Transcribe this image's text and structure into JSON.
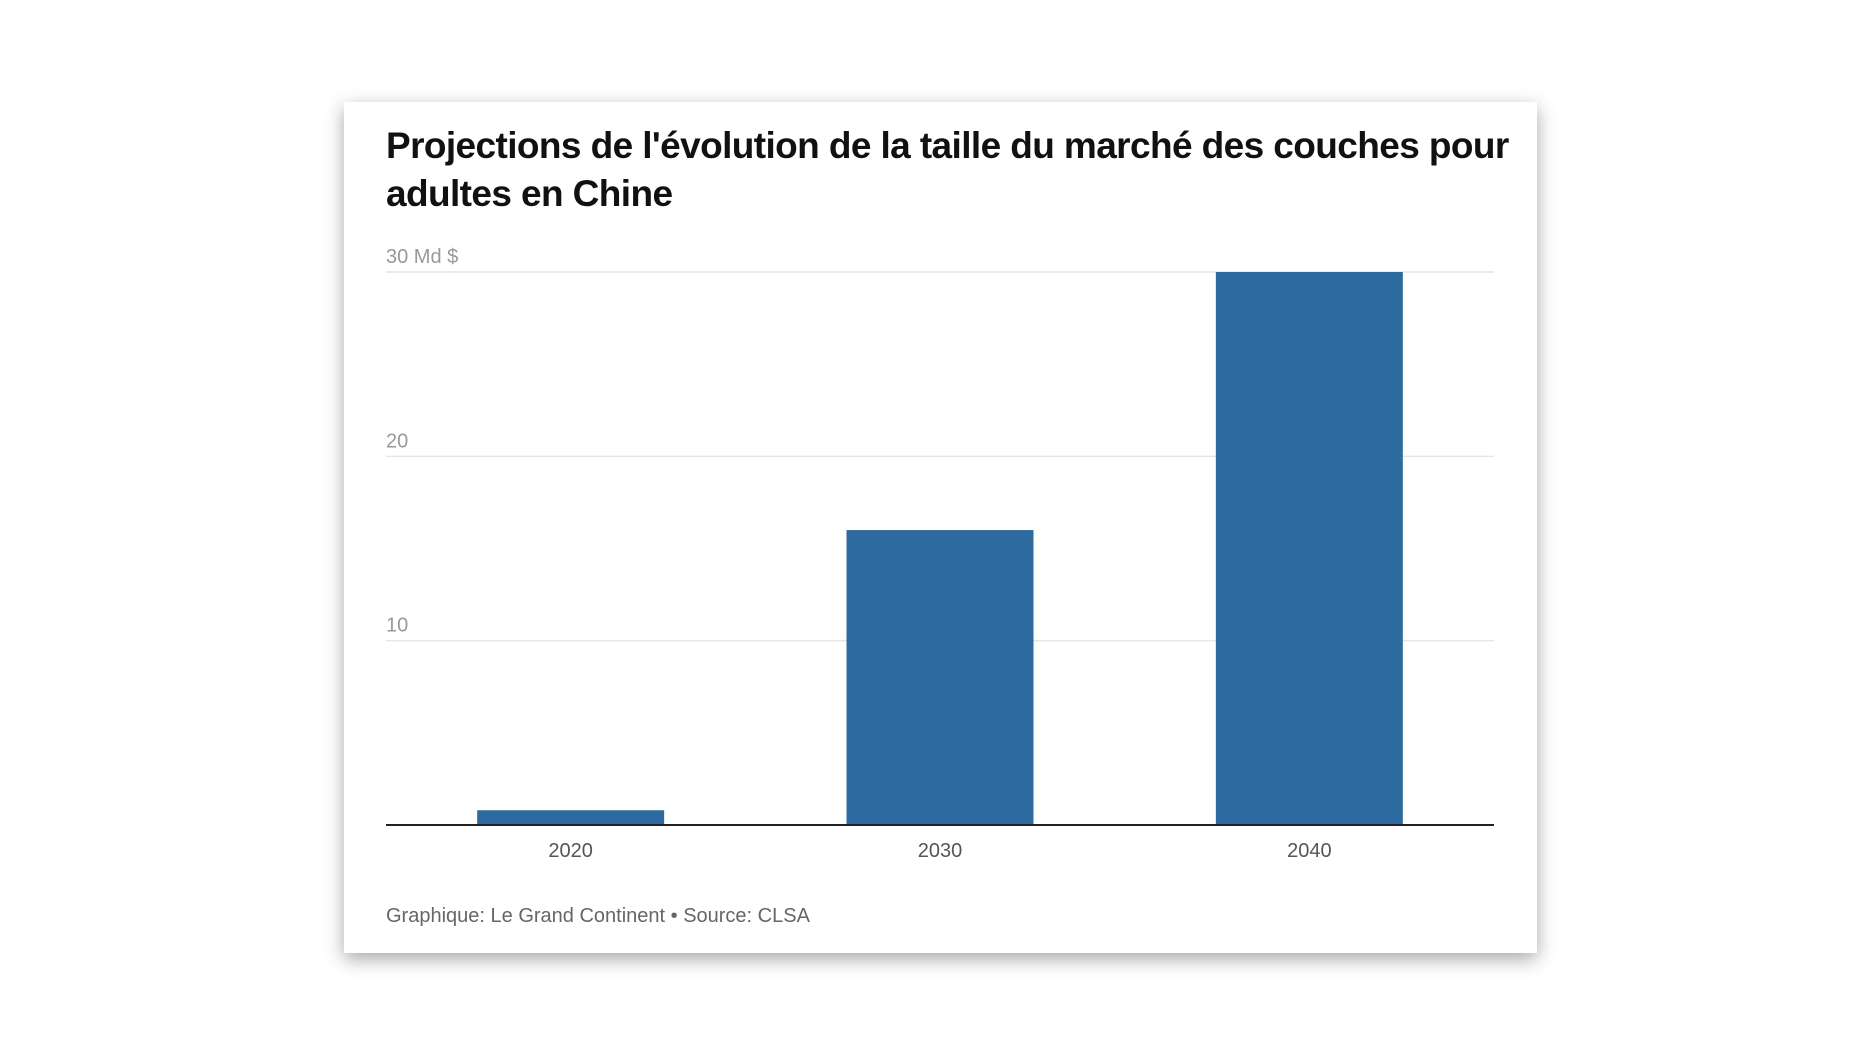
{
  "chart_data": {
    "type": "bar",
    "title": "Projections de l'évolution de la taille du marché des couches pour adultes en Chine",
    "categories": [
      "2020",
      "2030",
      "2040"
    ],
    "values": [
      0.8,
      16,
      30
    ],
    "ylim": [
      0,
      30
    ],
    "yticks": [
      10,
      20,
      30
    ],
    "ytick_labels": [
      "10",
      "20",
      "30 Md $"
    ],
    "xlabel": "",
    "ylabel": "",
    "grid": true,
    "bar_color": "#2d6a9f"
  },
  "footer": "Graphique: Le Grand Continent • Source: CLSA"
}
